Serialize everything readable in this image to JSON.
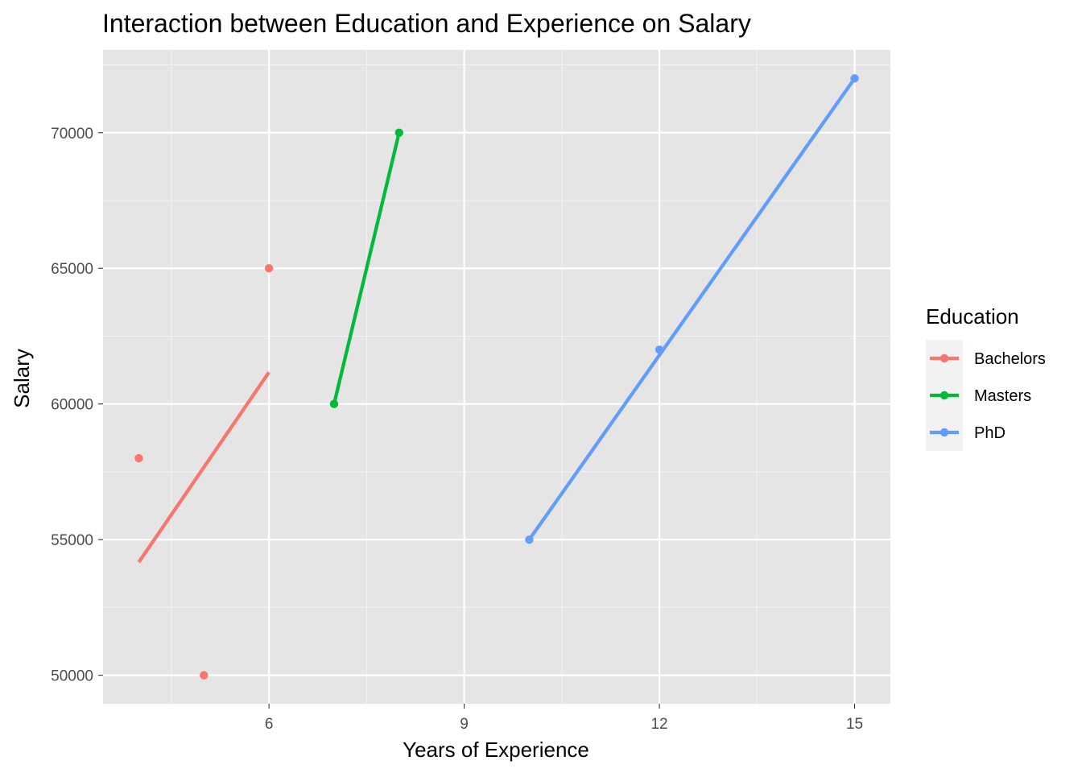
{
  "chart_data": {
    "type": "scatter",
    "title": "Interaction between Education and Experience on Salary",
    "xlabel": "Years of Experience",
    "ylabel": "Salary",
    "xlim": [
      3.45,
      15.55
    ],
    "ylim": [
      48950,
      73050
    ],
    "x_ticks": [
      6,
      9,
      12,
      15
    ],
    "x_tick_labels": [
      "6",
      "9",
      "12",
      "15"
    ],
    "x_minor_ticks": [
      4.5,
      7.5,
      10.5,
      13.5
    ],
    "y_ticks": [
      50000,
      55000,
      60000,
      65000,
      70000
    ],
    "y_tick_labels": [
      "50000",
      "55000",
      "60000",
      "65000",
      "70000"
    ],
    "y_minor_ticks": [
      52500,
      57500,
      62500,
      67500,
      72500
    ],
    "grid": true,
    "legend": {
      "title": "Education",
      "position": "right"
    },
    "series": [
      {
        "name": "Bachelors",
        "color": "#F8766D",
        "points": [
          {
            "x": 4,
            "y": 58000
          },
          {
            "x": 5,
            "y": 50000
          },
          {
            "x": 6,
            "y": 65000
          }
        ],
        "fit_line": [
          {
            "x": 4,
            "y": 54170
          },
          {
            "x": 6,
            "y": 61170
          }
        ]
      },
      {
        "name": "Masters",
        "color": "#00BA38",
        "points": [
          {
            "x": 7,
            "y": 60000
          },
          {
            "x": 8,
            "y": 70000
          }
        ],
        "fit_line": [
          {
            "x": 7,
            "y": 60000
          },
          {
            "x": 8,
            "y": 70000
          }
        ]
      },
      {
        "name": "PhD",
        "color": "#619CFF",
        "points": [
          {
            "x": 10,
            "y": 55000
          },
          {
            "x": 12,
            "y": 62000
          },
          {
            "x": 15,
            "y": 72000
          }
        ],
        "fit_line": [
          {
            "x": 10,
            "y": 55000
          },
          {
            "x": 15,
            "y": 72000
          }
        ]
      }
    ]
  }
}
